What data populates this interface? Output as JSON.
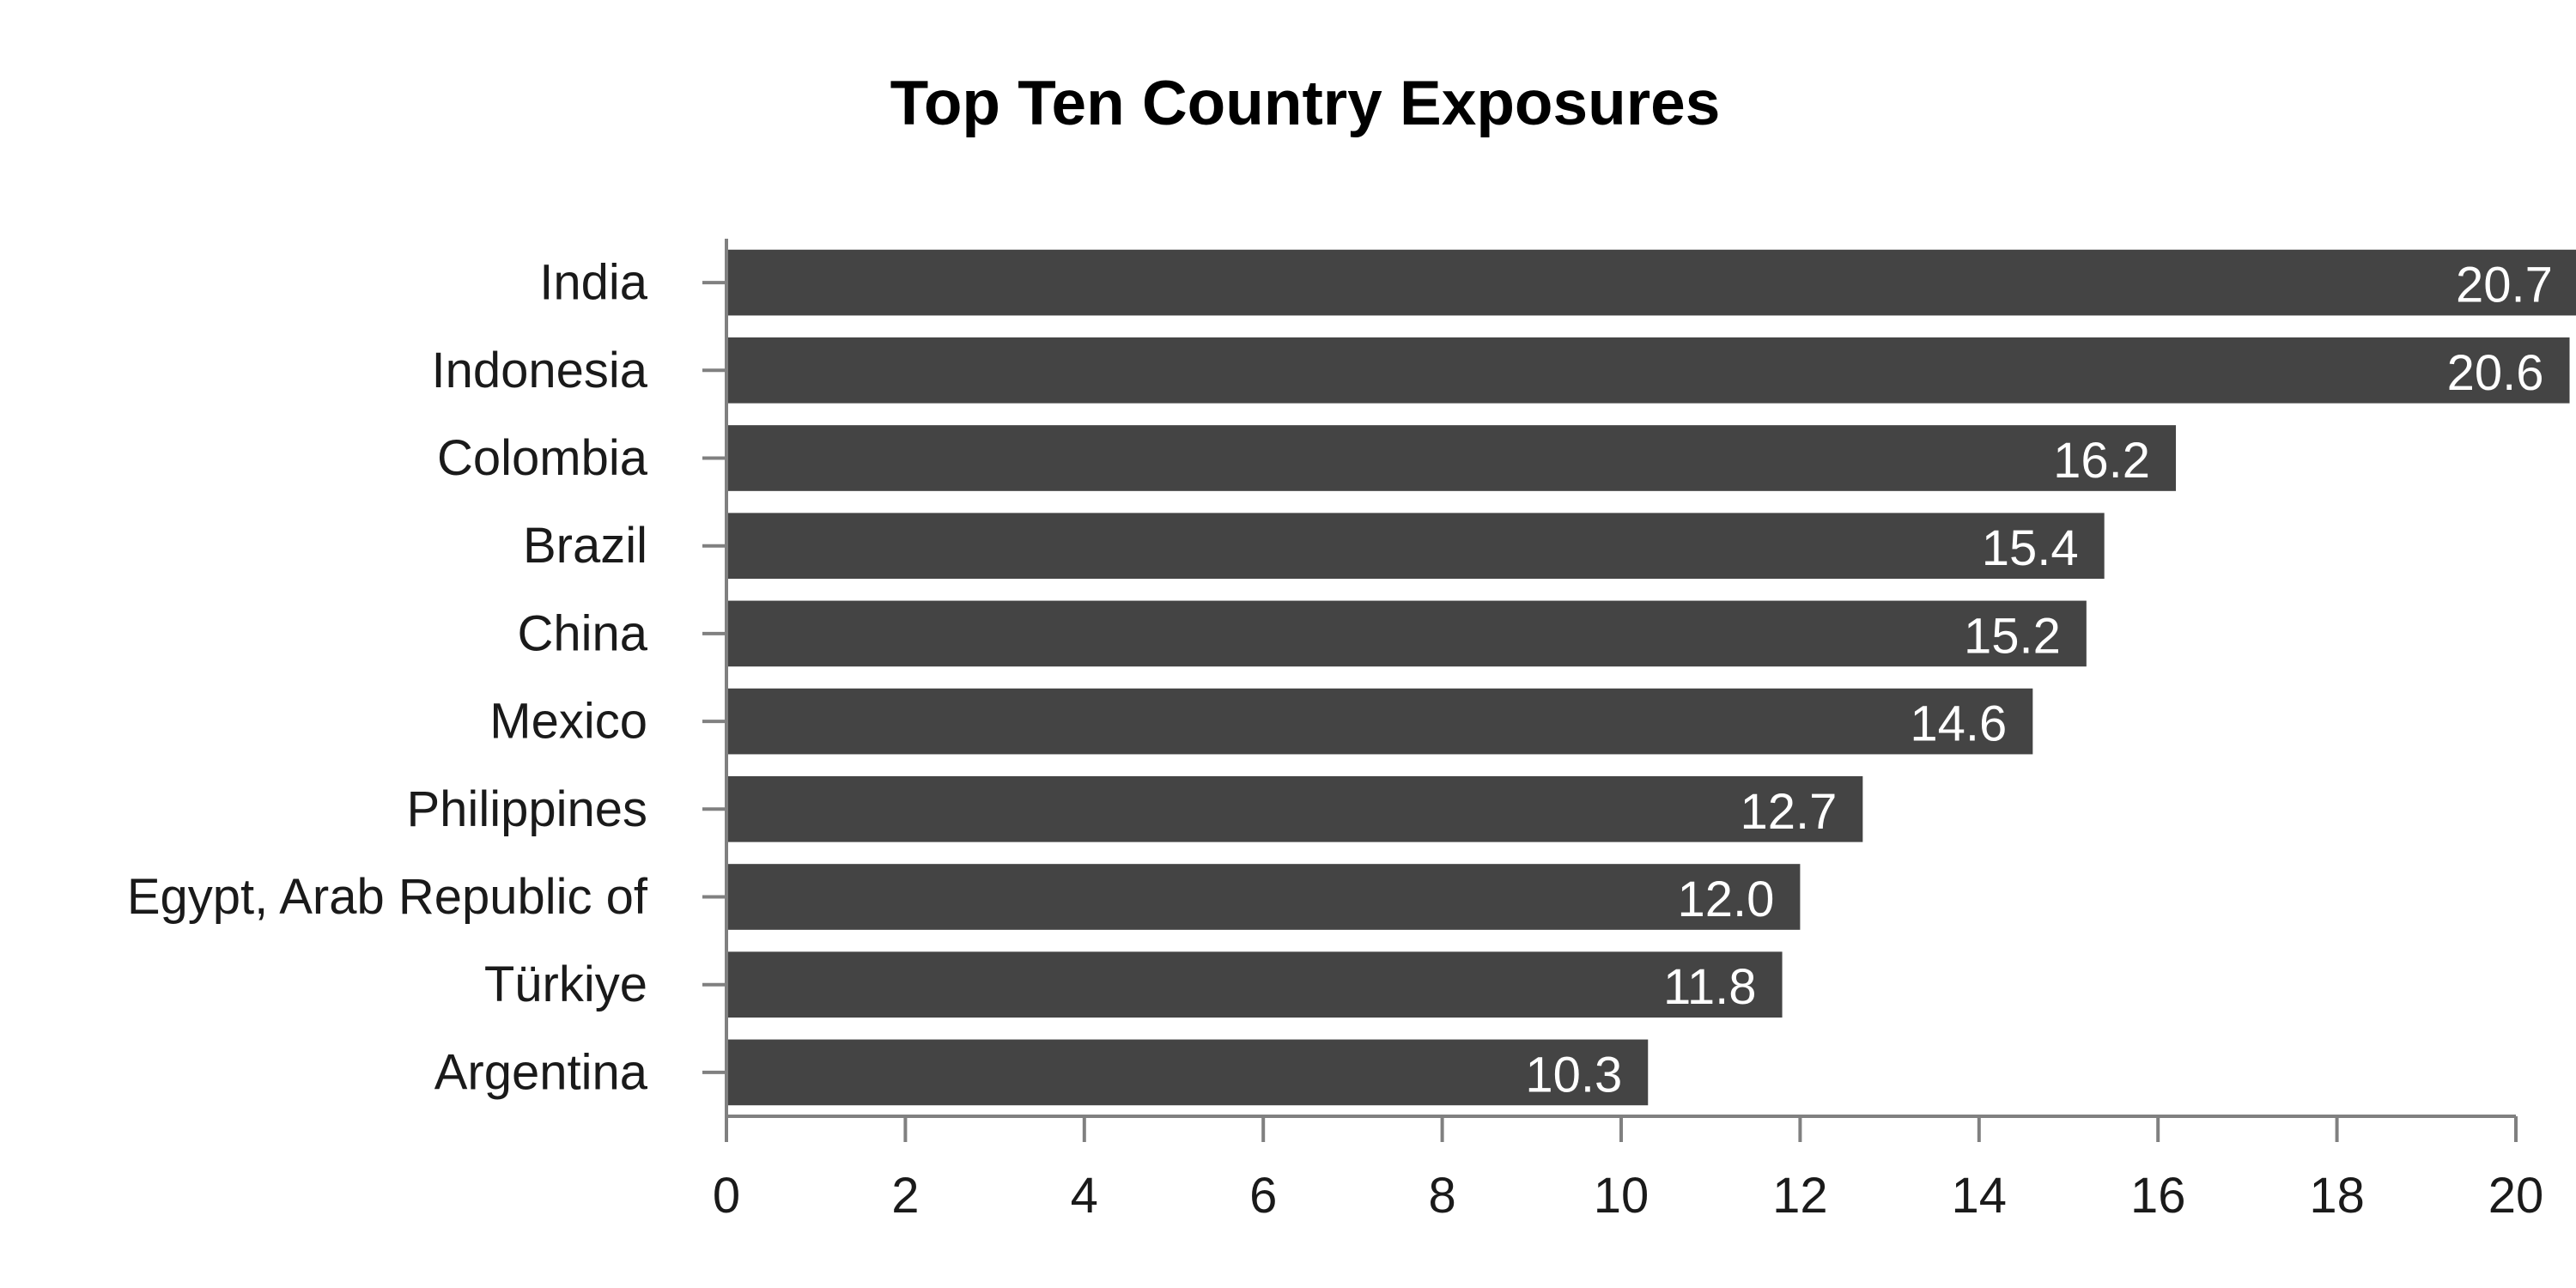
{
  "chart_data": {
    "type": "bar",
    "orientation": "horizontal",
    "title": "Top Ten Country Exposures",
    "xlabel": "",
    "ylabel": "",
    "categories": [
      "India",
      "Indonesia",
      "Colombia",
      "Brazil",
      "China",
      "Mexico",
      "Philippines",
      "Egypt, Arab Republic of",
      "Türkiye",
      "Argentina"
    ],
    "values": [
      20.7,
      20.6,
      16.2,
      15.4,
      15.2,
      14.6,
      12.7,
      12.0,
      11.8,
      10.3
    ],
    "value_labels": [
      "20.7",
      "20.6",
      "16.2",
      "15.4",
      "15.2",
      "14.6",
      "12.7",
      "12.0",
      "11.8",
      "10.3"
    ],
    "xlim": [
      0,
      20
    ],
    "xticks": [
      "0",
      "2",
      "4",
      "6",
      "8",
      "10",
      "12",
      "14",
      "16",
      "18",
      "20"
    ],
    "grid": false,
    "legend": "none",
    "bar_color": "#444444",
    "value_label_color": "#ffffff"
  }
}
